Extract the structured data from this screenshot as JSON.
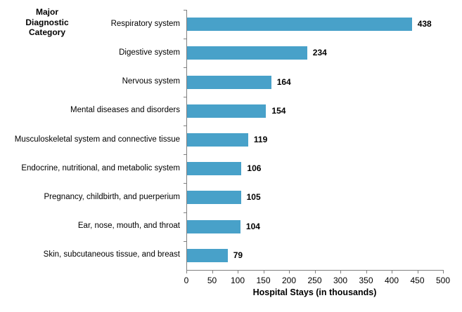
{
  "chart_data": {
    "type": "bar",
    "orientation": "horizontal",
    "category_axis_title": "Major Diagnostic Category",
    "categories": [
      "Respiratory system",
      "Digestive system",
      "Nervous system",
      "Mental diseases and disorders",
      "Musculoskeletal system and connective tissue",
      "Endocrine, nutritional, and metabolic system",
      "Pregnancy, childbirth, and puerperium",
      "Ear, nose, mouth, and throat",
      "Skin, subcutaneous tissue, and breast"
    ],
    "values": [
      438,
      234,
      164,
      154,
      119,
      106,
      105,
      104,
      79
    ],
    "data_labels": [
      "438",
      "234",
      "164",
      "154",
      "119",
      "106",
      "105",
      "104",
      "79"
    ],
    "xlabel": "Hospital Stays (in thousands)",
    "xlim": [
      0,
      500
    ],
    "x_ticks": [
      0,
      50,
      100,
      150,
      200,
      250,
      300,
      350,
      400,
      450,
      500
    ],
    "x_tick_labels": [
      "0",
      "50",
      "100",
      "150",
      "200",
      "250",
      "300",
      "350",
      "400",
      "450",
      "500"
    ],
    "grid": false,
    "legend": "none",
    "bar_color": "#48A1C9",
    "axis_color": "#808080",
    "text_color": "#000000"
  }
}
